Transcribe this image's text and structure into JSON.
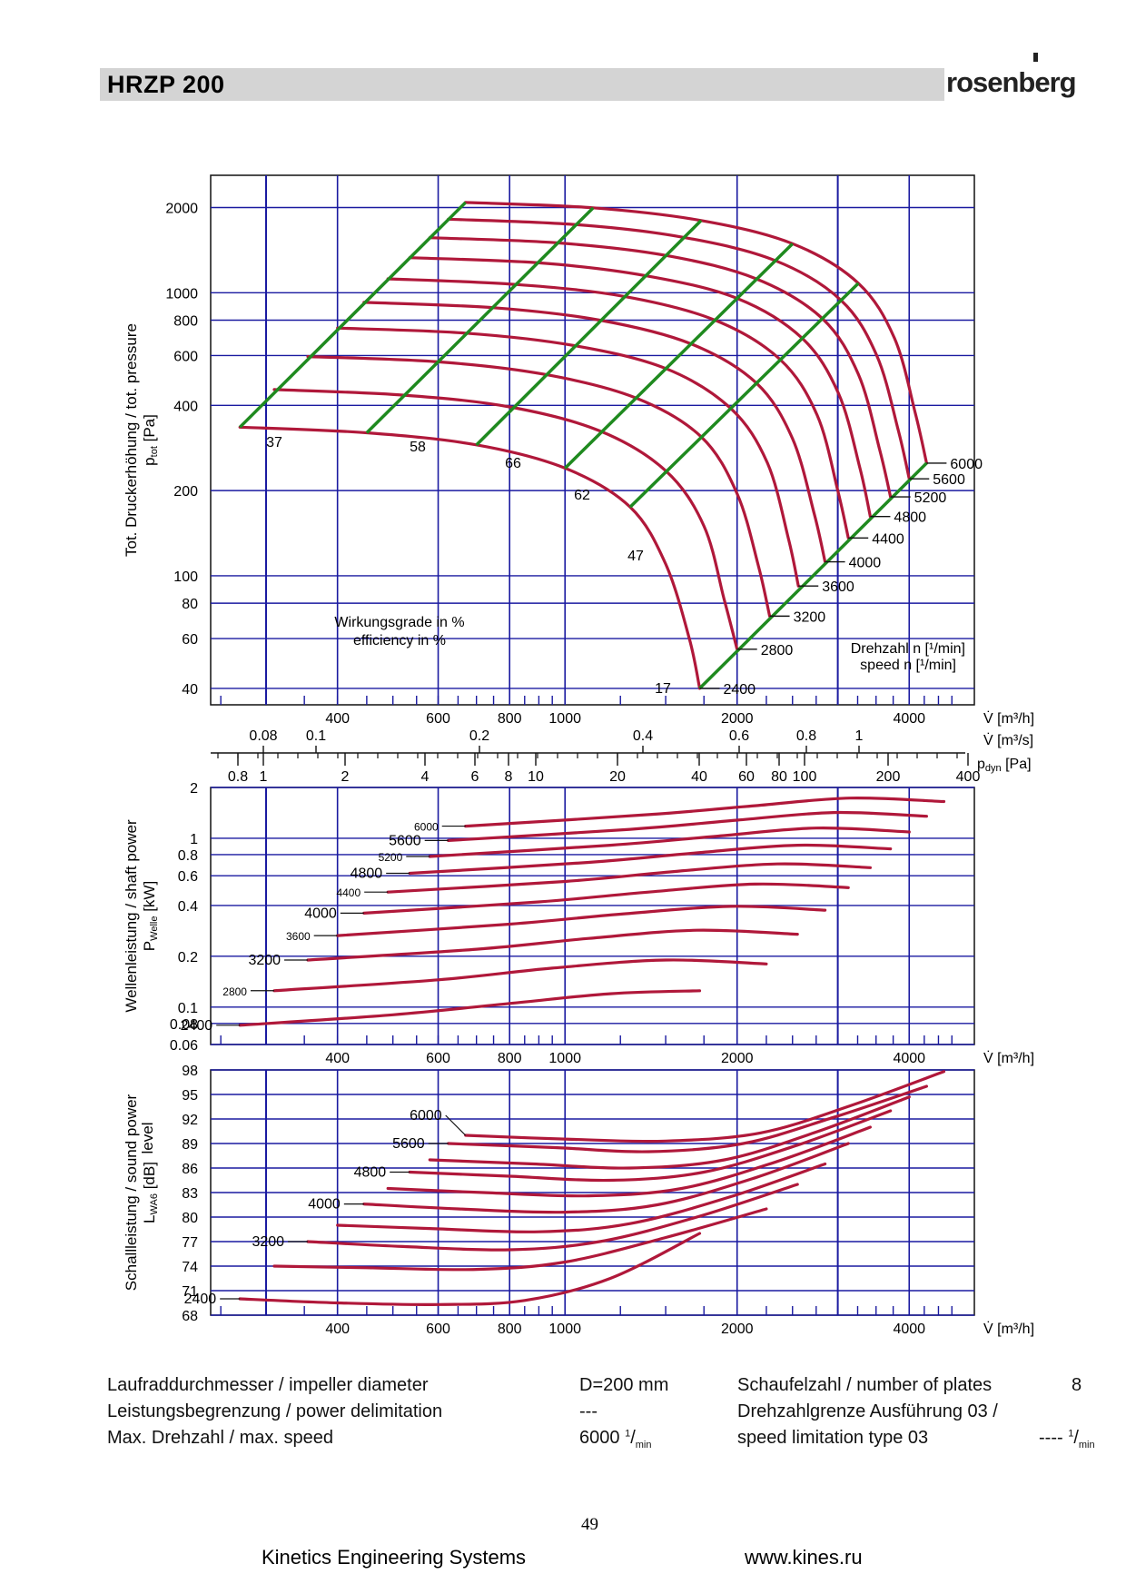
{
  "header": {
    "title": "HRZP 200",
    "logo": "rosenberg"
  },
  "colors": {
    "grid": "#1a1aa0",
    "curve": "#b0183a",
    "efficiency": "#1f8a1f",
    "header_bar": "#d4d4d4"
  },
  "chart_data": [
    {
      "id": "pressure",
      "type": "line",
      "xscale": "log",
      "yscale": "log",
      "xlim": [
        240,
        5200
      ],
      "ylim": [
        35,
        2600
      ],
      "ylabel": "Tot. Druckerhöhung / tot. pressure",
      "ylabel2": "p",
      "ylabel2_sub": "tot",
      "ylabel2_unit": " [Pa]",
      "yticks": [
        40,
        60,
        80,
        100,
        200,
        400,
        600,
        800,
        1000,
        2000
      ],
      "xticks": [
        400,
        600,
        800,
        1000,
        2000,
        4000
      ],
      "xunit": "V̇ [m³/h]",
      "note1": "Wirkungsgrade in %",
      "note2": "efficiency in %",
      "speed_label1": "Drehzahl n [¹/min]",
      "speed_label2": "speed n [¹/min]",
      "speeds": [
        2400,
        2800,
        3200,
        3600,
        4000,
        4400,
        4800,
        5200,
        5600,
        6000
      ],
      "speed_labels": [
        "2400",
        "2800",
        "3200",
        "3600",
        "4000",
        "4400",
        "4800",
        "5200",
        "5600",
        "6000"
      ],
      "efficiency_labels": [
        "37",
        "58",
        "66",
        "62",
        "47",
        "17"
      ],
      "series": [
        {
          "x": [
            270,
            450,
            700,
            1000,
            1300,
            1500,
            1650,
            1720
          ],
          "y": [
            335,
            320,
            290,
            240,
            175,
            110,
            60,
            40
          ]
        },
        {
          "x": [
            310,
            520,
            800,
            1150,
            1500,
            1750,
            1900,
            2000
          ],
          "y": [
            455,
            435,
            395,
            325,
            235,
            150,
            82,
            55
          ]
        },
        {
          "x": [
            355,
            600,
            920,
            1330,
            1730,
            2000,
            2180,
            2280
          ],
          "y": [
            595,
            570,
            515,
            425,
            310,
            195,
            108,
            72
          ]
        },
        {
          "x": [
            400,
            670,
            1040,
            1500,
            1950,
            2260,
            2460,
            2560
          ],
          "y": [
            750,
            720,
            650,
            540,
            390,
            250,
            135,
            92
          ]
        },
        {
          "x": [
            445,
            750,
            1150,
            1660,
            2160,
            2500,
            2730,
            2850
          ],
          "y": [
            925,
            885,
            800,
            660,
            480,
            305,
            165,
            112
          ]
        },
        {
          "x": [
            490,
            820,
            1270,
            1830,
            2380,
            2760,
            3000,
            3130
          ],
          "y": [
            1120,
            1070,
            970,
            800,
            580,
            370,
            200,
            136
          ]
        },
        {
          "x": [
            535,
            900,
            1380,
            2000,
            2600,
            3010,
            3280,
            3420
          ],
          "y": [
            1330,
            1275,
            1150,
            955,
            690,
            440,
            240,
            162
          ]
        },
        {
          "x": [
            580,
            970,
            1500,
            2160,
            2820,
            3260,
            3550,
            3710
          ],
          "y": [
            1565,
            1500,
            1355,
            1120,
            810,
            515,
            280,
            190
          ]
        },
        {
          "x": [
            625,
            1050,
            1610,
            2330,
            3040,
            3510,
            3830,
            4000
          ],
          "y": [
            1820,
            1740,
            1570,
            1300,
            940,
            600,
            325,
            220
          ]
        },
        {
          "x": [
            670,
            1120,
            1730,
            2500,
            3260,
            3770,
            4100,
            4290
          ],
          "y": [
            2085,
            1995,
            1800,
            1490,
            1080,
            690,
            375,
            250
          ]
        }
      ],
      "efficiency_lines": [
        {
          "x": [
            270,
            670
          ],
          "y": [
            335,
            2085
          ]
        },
        {
          "x": [
            450,
            1120
          ],
          "y": [
            320,
            1995
          ]
        },
        {
          "x": [
            700,
            1730
          ],
          "y": [
            290,
            1800
          ]
        },
        {
          "x": [
            1000,
            2500
          ],
          "y": [
            240,
            1490
          ]
        },
        {
          "x": [
            1300,
            3260
          ],
          "y": [
            175,
            1080
          ]
        },
        {
          "x": [
            1720,
            4290
          ],
          "y": [
            40,
            250
          ]
        }
      ]
    },
    {
      "id": "power",
      "type": "line",
      "xscale": "log",
      "yscale": "log",
      "xlim": [
        240,
        5200
      ],
      "ylim": [
        0.06,
        2.0
      ],
      "ylabel": "Wellenleistung / shaft power",
      "ylabel2": "P",
      "ylabel2_sub": "Welle",
      "ylabel2_unit": " [kW]",
      "yticks": [
        0.06,
        0.08,
        0.1,
        0.2,
        0.4,
        0.6,
        0.8,
        1,
        2
      ],
      "xticks": [
        400,
        600,
        800,
        1000,
        2000,
        4000
      ],
      "xunit": "V̇ [m³/h]",
      "speed_labels": [
        "2400",
        "2800",
        "3200",
        "3600",
        "4000",
        "4400",
        "4800",
        "5200",
        "5600",
        "6000"
      ],
      "series": [
        {
          "x": [
            270,
            500,
            800,
            1200,
            1720
          ],
          "y": [
            0.078,
            0.09,
            0.105,
            0.12,
            0.125
          ]
        },
        {
          "x": [
            310,
            600,
            950,
            1500,
            2250
          ],
          "y": [
            0.125,
            0.145,
            0.17,
            0.19,
            0.18
          ]
        },
        {
          "x": [
            355,
            700,
            1100,
            1700,
            2550
          ],
          "y": [
            0.19,
            0.22,
            0.255,
            0.285,
            0.27
          ]
        },
        {
          "x": [
            400,
            800,
            1250,
            1950,
            2850
          ],
          "y": [
            0.265,
            0.31,
            0.355,
            0.395,
            0.375
          ]
        },
        {
          "x": [
            445,
            900,
            1400,
            2150,
            3130
          ],
          "y": [
            0.36,
            0.42,
            0.48,
            0.535,
            0.51
          ]
        },
        {
          "x": [
            490,
            1000,
            1550,
            2350,
            3420
          ],
          "y": [
            0.48,
            0.555,
            0.635,
            0.705,
            0.67
          ]
        },
        {
          "x": [
            535,
            1100,
            1700,
            2550,
            3710
          ],
          "y": [
            0.62,
            0.72,
            0.82,
            0.91,
            0.865
          ]
        },
        {
          "x": [
            580,
            1200,
            1850,
            2750,
            4000
          ],
          "y": [
            0.78,
            0.91,
            1.03,
            1.15,
            1.09
          ]
        },
        {
          "x": [
            625,
            1300,
            2000,
            2950,
            4290
          ],
          "y": [
            0.97,
            1.13,
            1.28,
            1.42,
            1.35
          ]
        },
        {
          "x": [
            670,
            1400,
            2150,
            3150,
            4600
          ],
          "y": [
            1.18,
            1.38,
            1.56,
            1.73,
            1.65
          ]
        }
      ]
    },
    {
      "id": "sound",
      "type": "line",
      "xscale": "log",
      "yscale": "linear",
      "xlim": [
        240,
        5200
      ],
      "ylim": [
        68,
        98
      ],
      "ylabel": "Schallleistung / sound power",
      "ylabel_b": "level",
      "ylabel2": "L",
      "ylabel2_sub": "WA6",
      "ylabel2_unit": " [dB]",
      "yticks": [
        68,
        71,
        74,
        77,
        80,
        83,
        86,
        89,
        92,
        95,
        98
      ],
      "xticks": [
        400,
        600,
        800,
        1000,
        2000,
        4000
      ],
      "xunit": "V̇ [m³/h]",
      "speed_labels": [
        "2400",
        "3200",
        "4000",
        "4800",
        "5600",
        "6000"
      ],
      "series": [
        {
          "x": [
            270,
            400,
            600,
            850,
            1200,
            1720
          ],
          "y": [
            70,
            69.5,
            69.3,
            69.8,
            72.5,
            78
          ]
        },
        {
          "x": [
            310,
            450,
            700,
            1000,
            1500,
            2250
          ],
          "y": [
            74,
            73.8,
            73.6,
            74.5,
            77.5,
            81
          ]
        },
        {
          "x": [
            355,
            520,
            800,
            1150,
            1700,
            2550
          ],
          "y": [
            77,
            76.4,
            76,
            77,
            80,
            84
          ]
        },
        {
          "x": [
            400,
            580,
            900,
            1300,
            1950,
            2850
          ],
          "y": [
            79,
            78.6,
            78.2,
            79.2,
            82.5,
            86.5
          ]
        },
        {
          "x": [
            445,
            650,
            1000,
            1450,
            2150,
            3130
          ],
          "y": [
            81.6,
            81,
            80.6,
            81.5,
            84.8,
            89
          ]
        },
        {
          "x": [
            490,
            720,
            1100,
            1600,
            2350,
            3420
          ],
          "y": [
            83.5,
            83,
            82.6,
            83.5,
            86.8,
            91
          ]
        },
        {
          "x": [
            535,
            800,
            1200,
            1750,
            2550,
            3710
          ],
          "y": [
            85.5,
            85,
            84.5,
            85.5,
            88.8,
            93
          ]
        },
        {
          "x": [
            580,
            880,
            1300,
            1900,
            2750,
            4000
          ],
          "y": [
            87,
            86.5,
            86,
            87,
            90.4,
            94.7
          ]
        },
        {
          "x": [
            625,
            960,
            1400,
            2050,
            2950,
            4290
          ],
          "y": [
            89,
            88.5,
            88,
            89,
            92.2,
            96
          ]
        },
        {
          "x": [
            670,
            1040,
            1500,
            2200,
            3150,
            4600
          ],
          "y": [
            90,
            89.5,
            89.3,
            90.3,
            93.6,
            97.8
          ]
        }
      ]
    }
  ],
  "axes": {
    "xunit_s": "V̇ [m³/s]",
    "xticks_s": [
      "0.08",
      "0.1",
      "0.2",
      "0.4",
      "0.6",
      "0.8",
      "1"
    ],
    "xunit_pdyn": "p",
    "xunit_pdyn_sub": "dyn",
    "xunit_pdyn_unit": " [Pa]",
    "xticks_pdyn": [
      "0.8",
      "1",
      "2",
      "4",
      "6",
      "8",
      "10",
      "20",
      "40",
      "60",
      "80",
      "100",
      "200",
      "400"
    ]
  },
  "specs": {
    "row1_label": "Laufraddurchmesser / impeller diameter",
    "row1_value": "D=200 mm",
    "row1_label2": "Schaufelzahl / number of plates",
    "row1_value2": "8",
    "row2_label": "Leistungsbegrenzung / power delimitation",
    "row2_value": "---",
    "row2_label2": "Drehzahlgrenze Ausführung 03 /",
    "row3_label": "Max. Drehzahl / max. speed",
    "row3_value": "6000",
    "row3_unit_sup": "1",
    "row3_unit_sub": "min",
    "row3_label2": "speed limitation type 03",
    "row3_value2": "----"
  },
  "page_number": "49",
  "footer": {
    "company": "Kinetics Engineering Systems",
    "website": "www.kines.ru"
  }
}
